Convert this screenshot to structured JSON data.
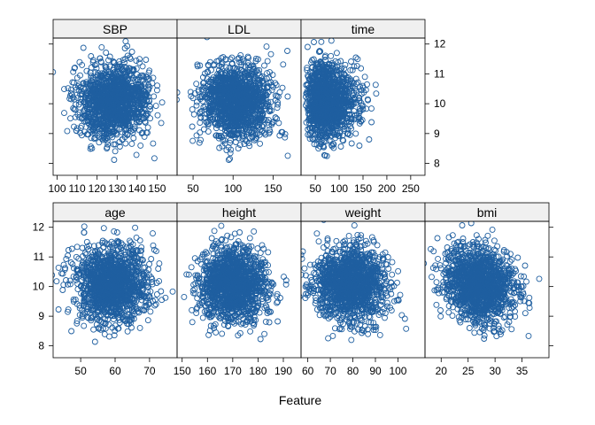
{
  "chart_data": {
    "type": "scatter",
    "xlabel": "Feature",
    "ylabel": "",
    "ylim": [
      7.6,
      12.2
    ],
    "y_ticks": [
      8,
      9,
      10,
      11,
      12
    ],
    "grid": false,
    "point_color": "#1f5fa0",
    "strip_color": "#f0f0f0",
    "y_center": 10.1,
    "y_spread": 0.62,
    "panels": [
      {
        "name": "SBP",
        "row": 0,
        "col": 0,
        "xlim": [
          98,
          160
        ],
        "x_ticks": [
          100,
          110,
          120,
          130,
          140,
          150
        ],
        "x_center": 128,
        "x_spread": 9,
        "x_skew": 0,
        "corr": 0,
        "n": 1400
      },
      {
        "name": "LDL",
        "row": 0,
        "col": 1,
        "xlim": [
          30,
          185
        ],
        "x_ticks": [
          50,
          100,
          150
        ],
        "x_center": 104,
        "x_spread": 21,
        "x_skew": 0,
        "corr": 0,
        "n": 1400
      },
      {
        "name": "time",
        "row": 0,
        "col": 2,
        "xlim": [
          20,
          280
        ],
        "x_ticks": [
          50,
          100,
          150,
          200,
          250
        ],
        "x_center": 100,
        "x_spread": 45,
        "x_skew": 1,
        "corr": 0,
        "n": 1400
      },
      {
        "name": "age",
        "row": 1,
        "col": 0,
        "xlim": [
          42,
          78
        ],
        "x_ticks": [
          50,
          60,
          70
        ],
        "x_center": 59,
        "x_spread": 5.5,
        "x_skew": 0,
        "corr": 0,
        "n": 1400
      },
      {
        "name": "height",
        "row": 1,
        "col": 1,
        "xlim": [
          148,
          197
        ],
        "x_ticks": [
          150,
          160,
          170,
          180,
          190
        ],
        "x_center": 170,
        "x_spread": 6.5,
        "x_skew": 0,
        "corr": 0,
        "n": 1400
      },
      {
        "name": "weight",
        "row": 1,
        "col": 2,
        "xlim": [
          57,
          112
        ],
        "x_ticks": [
          60,
          70,
          80,
          90,
          100
        ],
        "x_center": 79,
        "x_spread": 8,
        "x_skew": 0,
        "corr": 0,
        "n": 1400
      },
      {
        "name": "bmi",
        "row": 1,
        "col": 3,
        "xlim": [
          17,
          40
        ],
        "x_ticks": [
          20,
          25,
          30,
          35
        ],
        "x_center": 27,
        "x_spread": 3.2,
        "x_skew": 0,
        "corr": -0.15,
        "n": 1400
      }
    ]
  }
}
